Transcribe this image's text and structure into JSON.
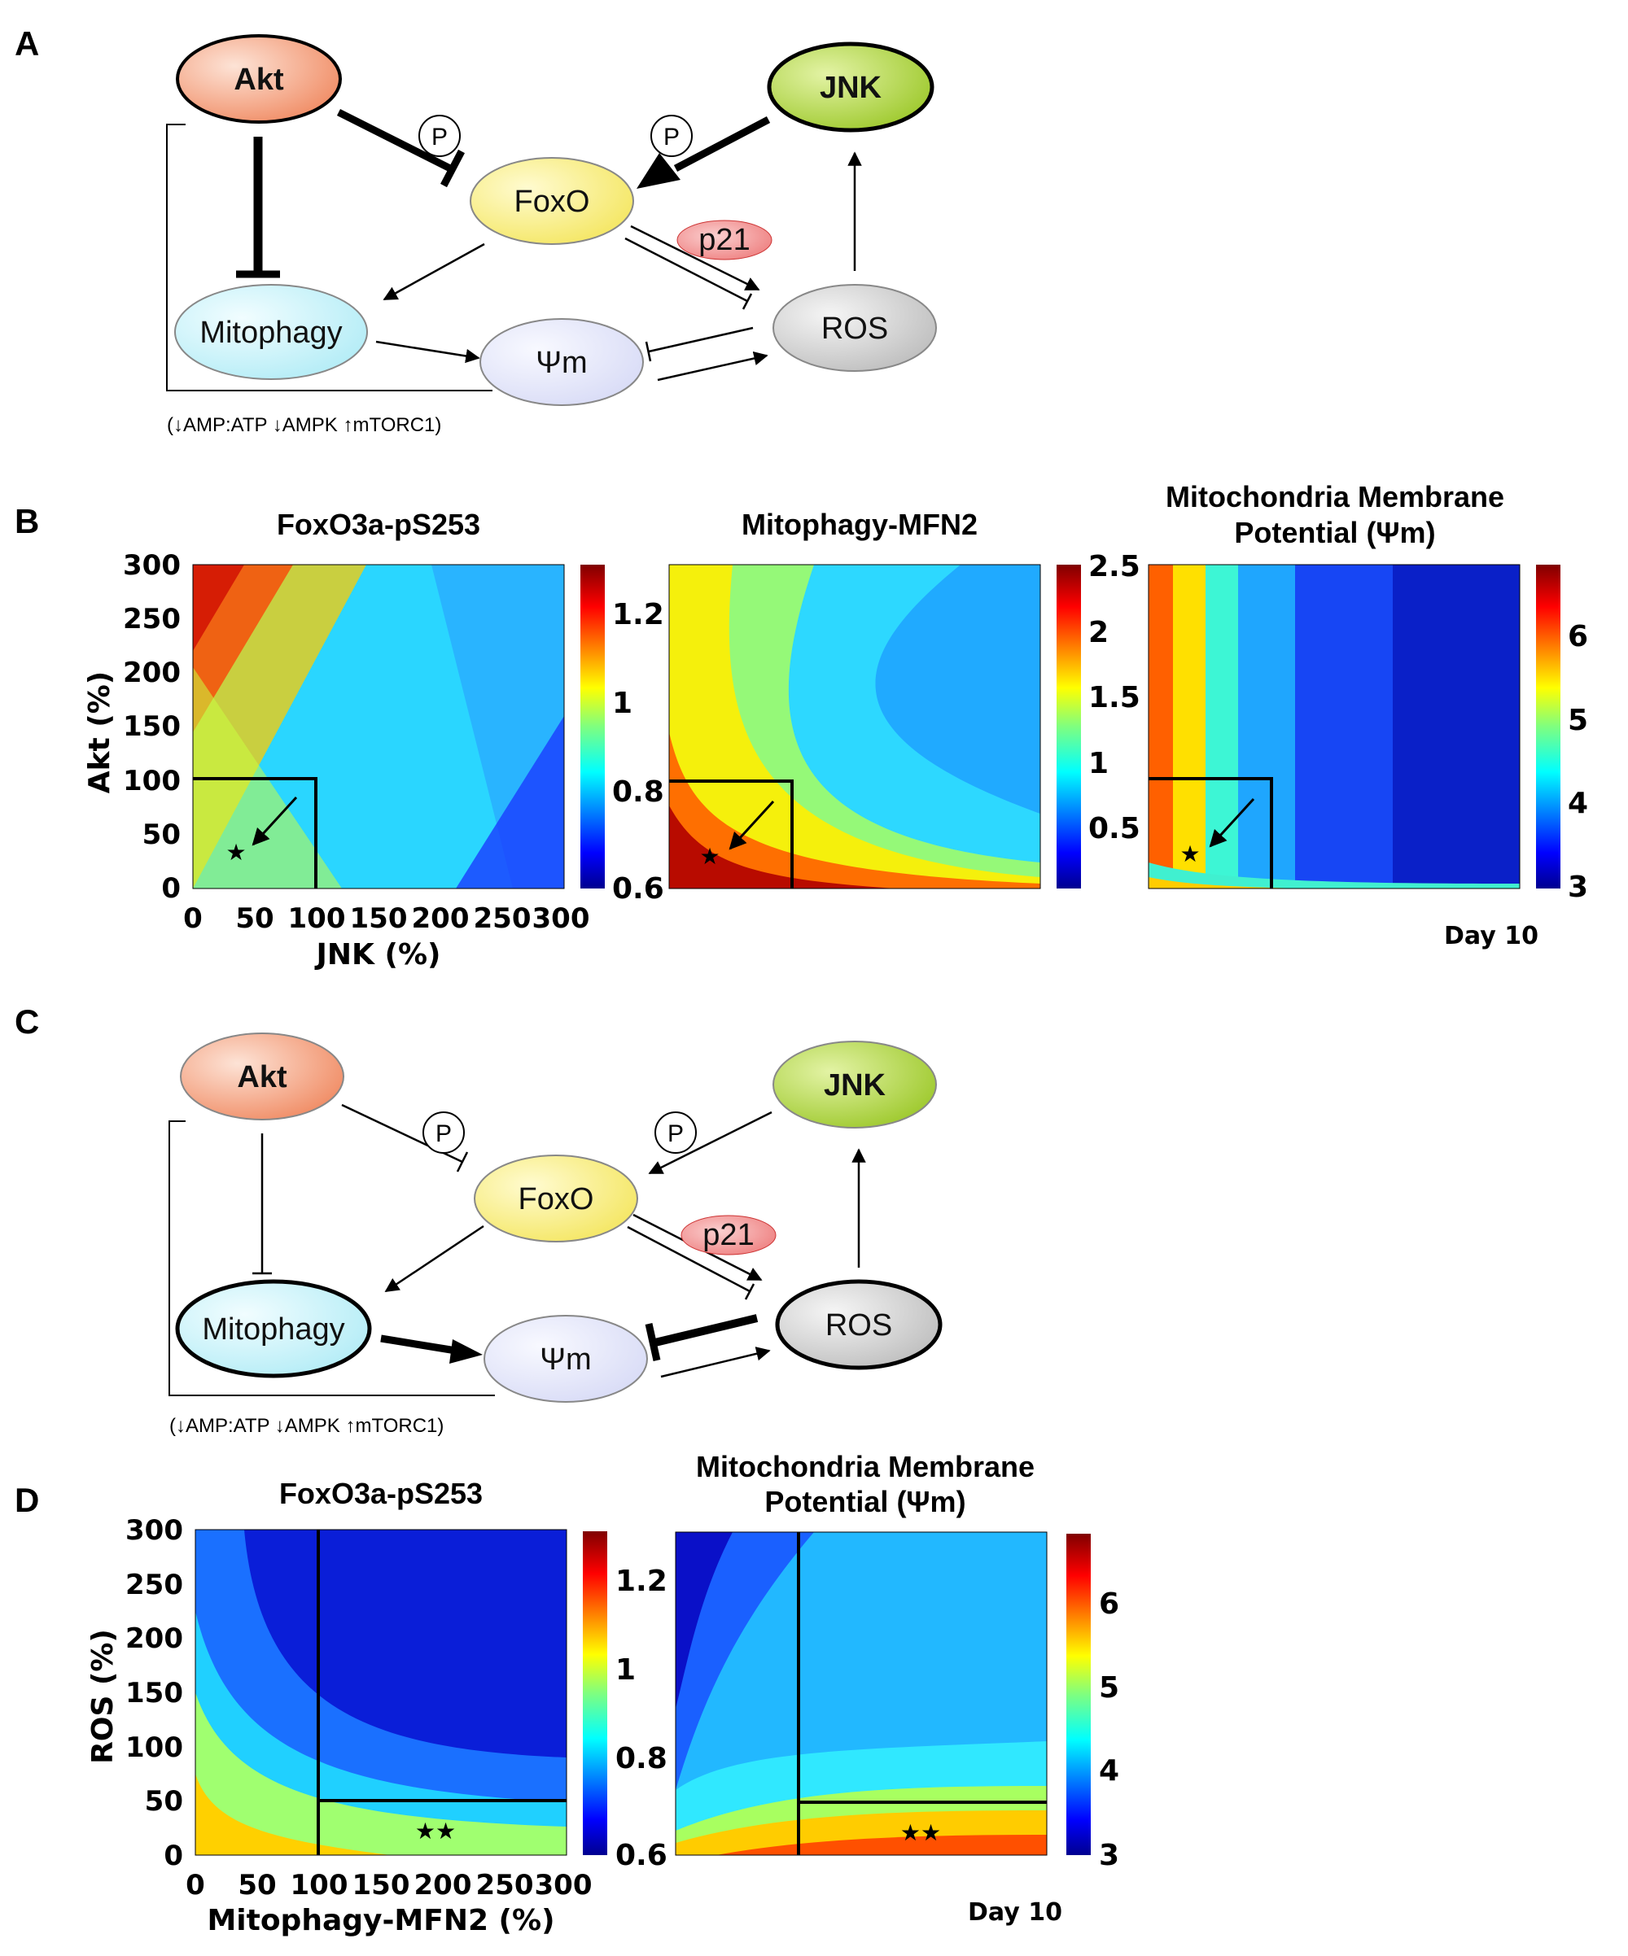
{
  "panels": {
    "a": "A",
    "b": "B",
    "c": "C",
    "d": "D"
  },
  "diagram": {
    "nodes": {
      "akt": "Akt",
      "jnk": "JNK",
      "foxo": "FoxO",
      "mitophagy": "Mitophagy",
      "psi_m": "Ψm",
      "ros": "ROS",
      "p21": "p21",
      "phospho": "P"
    },
    "bracket_note": "(↓AMP:ATP ↓AMPK ↑mTORC1)",
    "colors": {
      "akt": "#f5a07e",
      "jnk": "#a7cf3a",
      "foxo": "#f8ee7a",
      "mitophagy": "#c6f2f8",
      "psi_m": "#e4e6fb",
      "ros": "#cfcfcf",
      "p21": "#f28f8f"
    }
  },
  "heatmaps": {
    "b": [
      {
        "title": "FoxO3a-pS253",
        "colorbar_ticks": [
          "1.2",
          "1",
          "0.8",
          "0.6"
        ],
        "colorbar_range": [
          0.6,
          1.3
        ]
      },
      {
        "title": "Mitophagy-MFN2",
        "colorbar_ticks": [
          "2.5",
          "2",
          "1.5",
          "1",
          "0.5"
        ],
        "colorbar_range": [
          0.1,
          2.5
        ]
      },
      {
        "title_line1": "Mitochondria Membrane",
        "title_line2": "Potential (Ψm)",
        "colorbar_ticks": [
          "6",
          "5",
          "4",
          "3"
        ],
        "colorbar_range": [
          3,
          6.8
        ]
      }
    ],
    "b_axes": {
      "ylabel": "Akt (%)",
      "xlabel": "JNK (%)",
      "xticks": [
        "0",
        "50",
        "100",
        "150",
        "200",
        "250",
        "300"
      ],
      "yticks": [
        "300",
        "250",
        "200",
        "150",
        "100",
        "50",
        "0"
      ],
      "day": "Day 10",
      "marker": "★"
    },
    "d": [
      {
        "title": "FoxO3a-pS253",
        "colorbar_ticks": [
          "1.2",
          "1",
          "0.8",
          "0.6"
        ],
        "colorbar_range": [
          0.6,
          1.3
        ]
      },
      {
        "title_line1": "Mitochondria Membrane",
        "title_line2": "Potential (Ψm)",
        "colorbar_ticks": [
          "6",
          "5",
          "4",
          "3"
        ],
        "colorbar_range": [
          3,
          6.8
        ]
      }
    ],
    "d_axes": {
      "ylabel": "ROS (%)",
      "xlabel": "Mitophagy-MFN2 (%)",
      "xticks": [
        "0",
        "50",
        "100",
        "150",
        "200",
        "250",
        "300"
      ],
      "yticks": [
        "300",
        "250",
        "200",
        "150",
        "100",
        "50",
        "0"
      ],
      "day": "Day 10",
      "marker": "★★"
    }
  }
}
